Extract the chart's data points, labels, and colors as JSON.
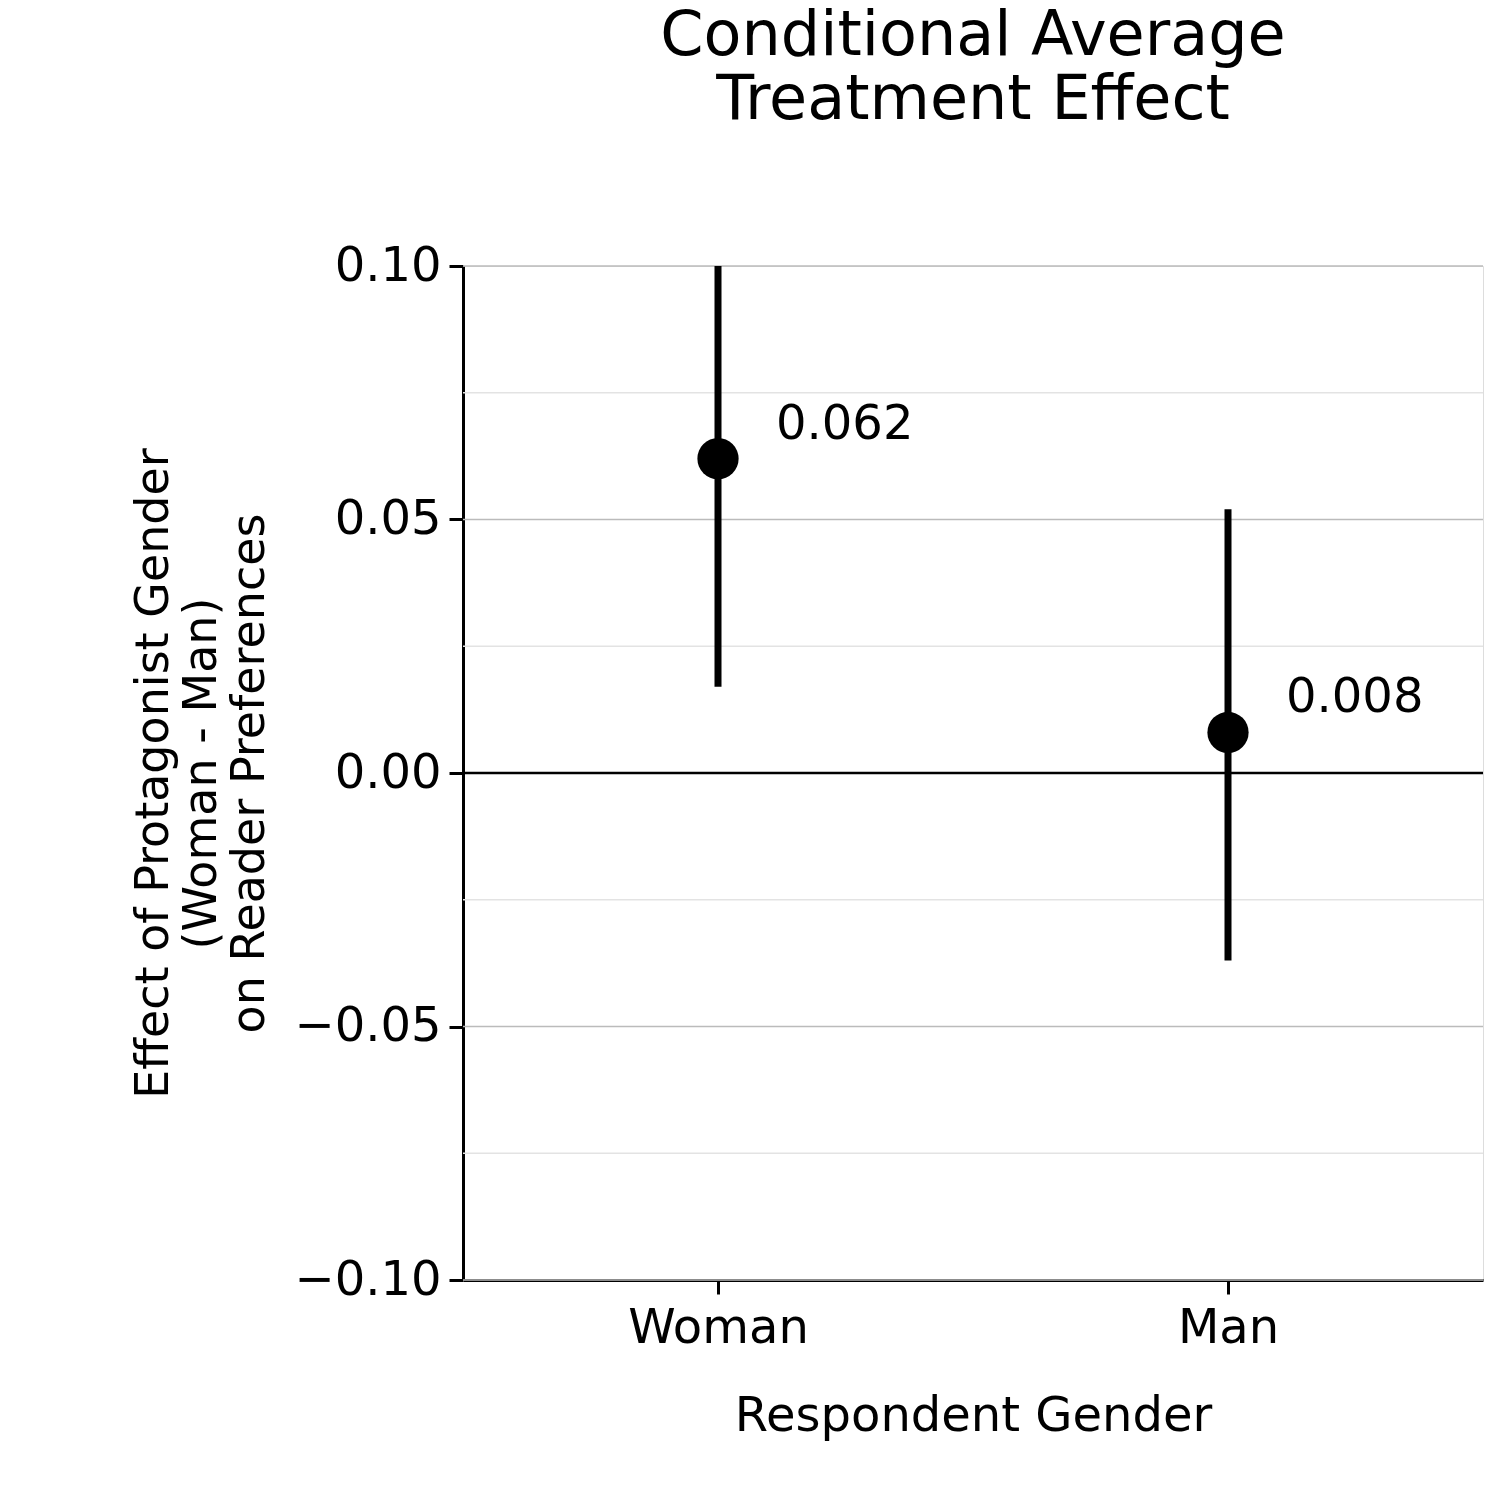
{
  "chart_data": {
    "type": "scatter",
    "title": [
      "Conditional Average",
      "Treatment Effect"
    ],
    "xlabel": "Respondent Gender",
    "ylabel": [
      "Effect of Protagonist Gender",
      "(Woman - Man)",
      "on Reader Preferences"
    ],
    "categories": [
      "Woman",
      "Man"
    ],
    "series": [
      {
        "color": "#000000",
        "values": [
          0.062,
          0.008
        ],
        "errors": [
          [
            0.017,
            0.1
          ],
          [
            -0.037,
            0.052
          ]
        ]
      }
    ],
    "data_labels": true,
    "marker": "circle",
    "grid": "y",
    "ylim": [
      -0.1,
      0.1
    ],
    "yticks": [
      {
        "value": -0.1,
        "label": "−0.10"
      },
      {
        "value": -0.075,
        "label": null
      },
      {
        "value": -0.05,
        "label": "−0.05"
      },
      {
        "value": -0.025,
        "label": null
      },
      {
        "value": 0,
        "label": "0.00"
      },
      {
        "value": 0.025,
        "label": null
      },
      {
        "value": 0.05,
        "label": "0.05"
      },
      {
        "value": 0.075,
        "label": null
      },
      {
        "value": 0.1,
        "label": "0.10"
      }
    ],
    "ref_lines": [
      {
        "axis": "y",
        "value": 0,
        "label": null,
        "color": "#000000"
      }
    ]
  }
}
